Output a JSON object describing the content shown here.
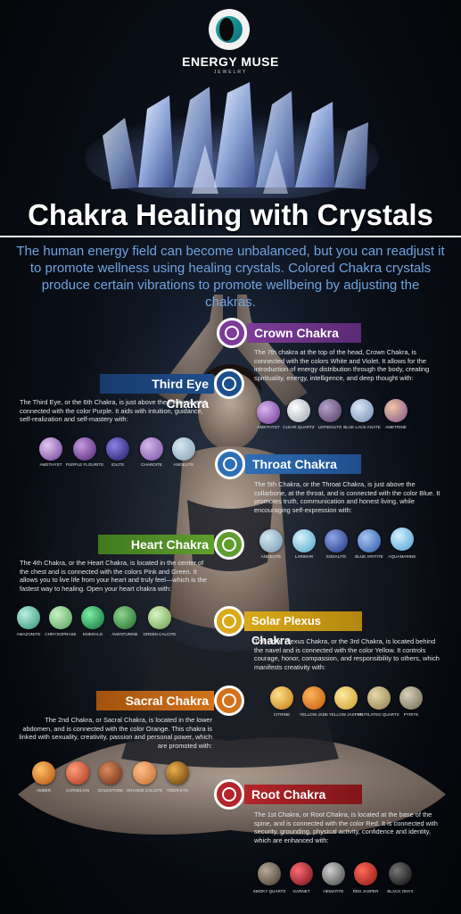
{
  "brand": {
    "name": "ENERGY MUSE",
    "sub": "JEWELRY"
  },
  "title": "Chakra Healing with Crystals",
  "intro": "The human energy field can become unbalanced, but you can readjust it to promote wellness using healing crystals. Colored Chakra crystals produce certain vibrations to promote wellbeing by adjusting the chakras.",
  "colors": {
    "crown": "#7d3c98",
    "third_eye": "#1f4e8c",
    "throat": "#2f6fb6",
    "heart": "#5f9e2e",
    "solar": "#d9a91a",
    "sacral": "#d2731c",
    "root": "#b3262b",
    "intro_text": "#6fa3de"
  },
  "chakras": {
    "crown": {
      "name": "Crown Chakra",
      "desc": "The 7th chakra at the top of the head, Crown Chakra, is connected with the colors White and Violet. It allows for the introduction of energy distribution through the body, creating spirituality, energy, intelligence, and deep thought with:",
      "gems": [
        "AMETHYST",
        "CLEAR QUARTZ",
        "LEPIDOLITE",
        "BLUE LACE AGATE",
        "AMETRINE"
      ]
    },
    "third_eye": {
      "name": "Third Eye Chakra",
      "desc": "The Third Eye, or the 6th Chakra, is just above the eyebrow and connected with the color Purple. It aids with intuition, guidance, self-realization and self-mastery with:",
      "gems": [
        "AMETHYST",
        "PURPLE FLOURITE",
        "IOLITE",
        "CHAROITE",
        "ANGELITE"
      ]
    },
    "throat": {
      "name": "Throat Chakra",
      "desc": "The 5th Chakra, or the Throat Chakra, is just above the collarbone, at the throat, and is connected with the color Blue. It promotes truth, communication and honest living, while encouraging self-expression with:",
      "gems": [
        "ANGELITE",
        "LARIMAR",
        "SODALITE",
        "BLUE APATITE",
        "AQUAMARINE"
      ]
    },
    "heart": {
      "name": "Heart Chakra",
      "desc": "The 4th Chakra, or the Heart Chakra, is located in the center of the chest and is connected with the colors Pink and Green. It allows you to live life from your heart and truly feel—which is the fastest way to healing. Open your heart chakra with:",
      "gems": [
        "AMAZONITE",
        "CHRYSOPRASE",
        "EMERALD",
        "AVENTURINE",
        "GREEN CALCITE"
      ]
    },
    "solar": {
      "name": "Solar Plexus Chakra",
      "desc": "The Solar Plexus Chakra, or the 3rd Chakra, is located behind the navel and is connected with the color Yellow. It controls courage, honor, compassion, and responsibility to others, which manifests creativity with:",
      "gems": [
        "CITRINE",
        "YELLOW JADE",
        "YELLOW JASPER",
        "RUTILATED QUARTZ",
        "PYRITE"
      ]
    },
    "sacral": {
      "name": "Sacral Chakra",
      "desc": "The 2nd Chakra, or Sacral Chakra, is located in the lower abdomen, and is connected with the color Orange. This chakra is linked with sexuality, creativity, passion and personal power, which are promoted with:",
      "gems": [
        "AMBER",
        "CARNELIAN",
        "GOLDSTONE",
        "ORANGE CALCITE",
        "TIGER EYE"
      ]
    },
    "root": {
      "name": "Root Chakra",
      "desc": "The 1st Chakra, or Root Chakra, is located at the base of the spine, and is connected with the color Red. It is connected with security, grounding, physical activity, confidence and identity, which are enhanced with:",
      "gems": [
        "SMOKY QUARTZ",
        "GARNET",
        "HEMATITE",
        "RED JASPER",
        "BLACK ONYX"
      ]
    }
  }
}
